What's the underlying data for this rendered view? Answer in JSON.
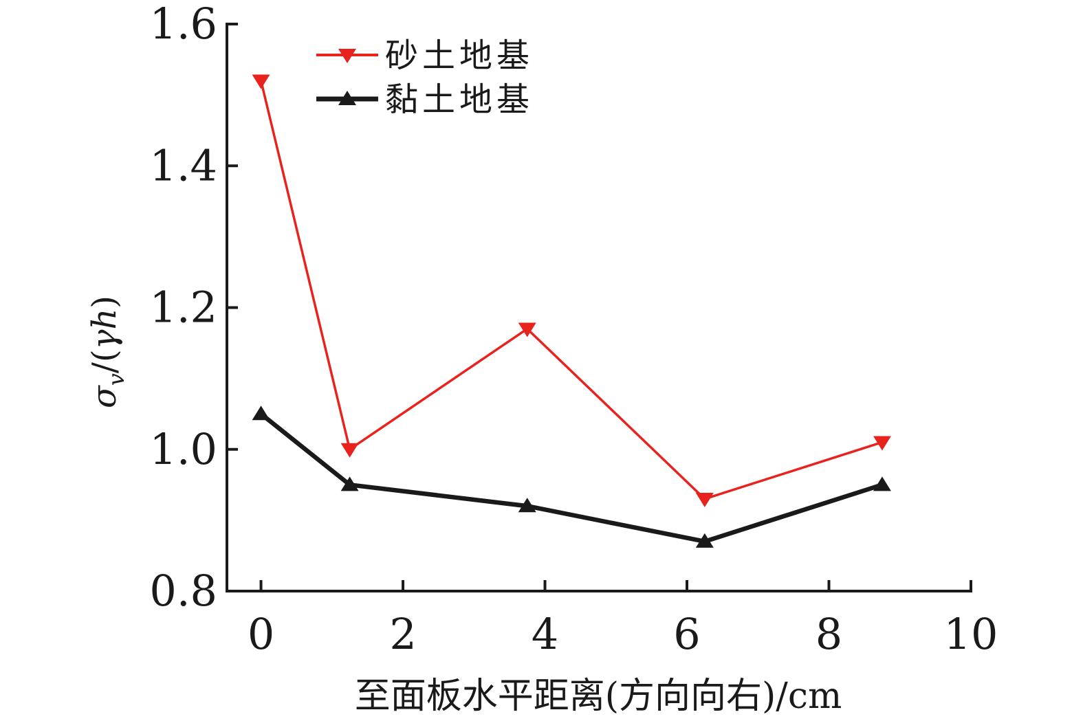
{
  "figure": {
    "background": "#ffffff",
    "text_color": "#1b1a1b"
  },
  "chart_data": {
    "type": "line",
    "title": "",
    "xlabel": "至面板水平距离(方向向右)/cm",
    "ylabel": "σv/(γh)",
    "ylabel_parts": [
      {
        "text": "σ",
        "italic": true
      },
      {
        "text": "v",
        "italic": true,
        "sub": true
      },
      {
        "text": "/(",
        "italic": false
      },
      {
        "text": "γh",
        "italic": true
      },
      {
        "text": ")",
        "italic": false
      }
    ],
    "x": [
      0,
      1.25,
      3.75,
      6.25,
      8.75
    ],
    "series": [
      {
        "key": "sand-foundation",
        "name": "砂土地基",
        "color": "#e8231e",
        "marker": "triangle-down",
        "line_width": 3.5,
        "values": [
          1.52,
          1.0,
          1.17,
          0.93,
          1.01
        ]
      },
      {
        "key": "clay-foundation",
        "name": "黏土地基",
        "color": "#1b1a1b",
        "marker": "triangle-up",
        "line_width": 6.5,
        "values": [
          1.05,
          0.95,
          0.92,
          0.87,
          0.95
        ]
      }
    ],
    "x_ticks": [
      0,
      2,
      4,
      6,
      8,
      10
    ],
    "x_tick_labels": [
      "0",
      "2",
      "4",
      "6",
      "8",
      "10"
    ],
    "y_ticks": [
      0.8,
      1.0,
      1.2,
      1.4,
      1.6
    ],
    "y_tick_labels": [
      "0.8",
      "1.0",
      "1.2",
      "1.4",
      "1.6"
    ],
    "xlim": [
      -0.48,
      10
    ],
    "ylim": [
      0.8,
      1.6
    ],
    "grid": false,
    "legend_position": "top-left-inside",
    "axis_color": "#1b1a1b"
  }
}
